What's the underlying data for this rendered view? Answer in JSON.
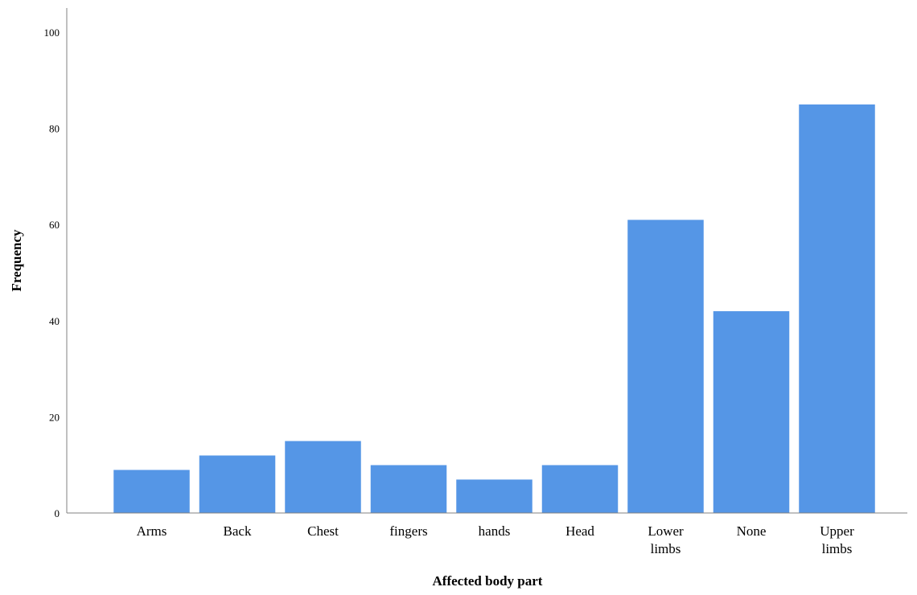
{
  "colors": {
    "bar": "#5596e6",
    "bar_stroke": "#ffffff",
    "axis": "#808080",
    "text": "#000000"
  },
  "chart_data": {
    "type": "bar",
    "title": "",
    "xlabel": "Affected body part",
    "ylabel": "Frequency",
    "categories": [
      [
        "Arms"
      ],
      [
        "Back"
      ],
      [
        "Chest"
      ],
      [
        "fingers"
      ],
      [
        "hands"
      ],
      [
        "Head"
      ],
      [
        "Lower",
        "limbs"
      ],
      [
        "None"
      ],
      [
        "Upper",
        "limbs"
      ]
    ],
    "values": [
      9,
      12,
      15,
      10,
      7,
      10,
      61,
      42,
      85
    ],
    "ylim": [
      0,
      105
    ],
    "yticks": [
      0,
      20,
      40,
      60,
      80,
      100
    ],
    "grid": false,
    "legend": "none"
  }
}
